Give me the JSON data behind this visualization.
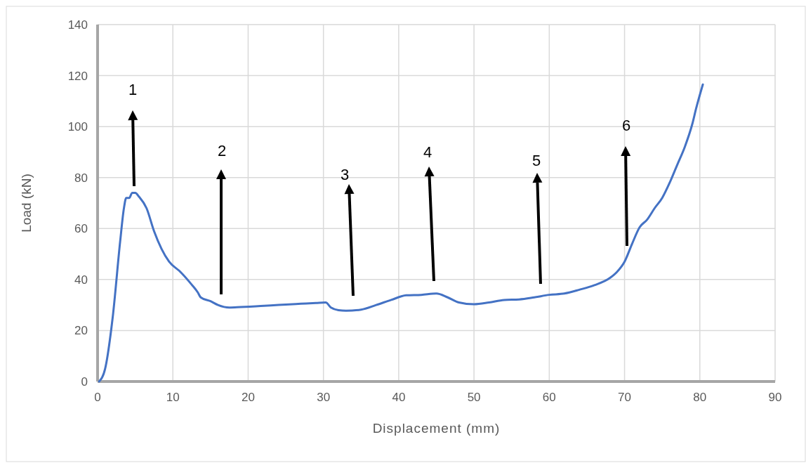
{
  "chart_data": {
    "type": "line",
    "xlabel": "Displacement (mm)",
    "ylabel": "Load (kN)",
    "xlim": [
      0,
      90
    ],
    "xticks": [
      0,
      10,
      20,
      30,
      40,
      50,
      60,
      70,
      80,
      90
    ],
    "ylim": [
      0,
      140
    ],
    "yticks": [
      0,
      20,
      40,
      60,
      80,
      100,
      120,
      140
    ],
    "grid": true,
    "marker": "none",
    "line_style": "solid",
    "series": [
      {
        "color": "#4472c4",
        "x": [
          0.2,
          1,
          2,
          3,
          3.5,
          3.8,
          4.2,
          4.6,
          5,
          5.5,
          6.5,
          7.5,
          8.5,
          9.5,
          11,
          12.5,
          13.3,
          13.7,
          15,
          16,
          17.5,
          19,
          21,
          23,
          25,
          27,
          29,
          30.3,
          31,
          32,
          33,
          35,
          37,
          39,
          41,
          43,
          45,
          46.5,
          48,
          50,
          52,
          54,
          56,
          58,
          60,
          62,
          64,
          66,
          68,
          69,
          70,
          71,
          72,
          73,
          74,
          75,
          76,
          77,
          78,
          79,
          79.5,
          80.4
        ],
        "values": [
          0,
          5,
          25,
          55,
          68,
          72,
          72,
          74,
          74,
          72.5,
          68,
          59,
          52,
          47,
          43,
          38,
          35,
          33,
          31.5,
          30,
          29,
          29.2,
          29.5,
          29.8,
          30.2,
          30.5,
          30.8,
          31,
          29,
          28,
          27.8,
          28.2,
          30,
          32,
          33.8,
          34,
          34.5,
          33,
          31,
          30.3,
          31,
          32,
          32.2,
          33,
          34,
          34.5,
          36,
          37.8,
          40.5,
          43,
          47,
          54,
          60.5,
          63.5,
          68,
          72,
          78,
          85,
          92,
          101,
          107,
          116.5
        ]
      }
    ],
    "annotations": [
      "1",
      "2",
      "3",
      "4",
      "5",
      "6"
    ]
  }
}
